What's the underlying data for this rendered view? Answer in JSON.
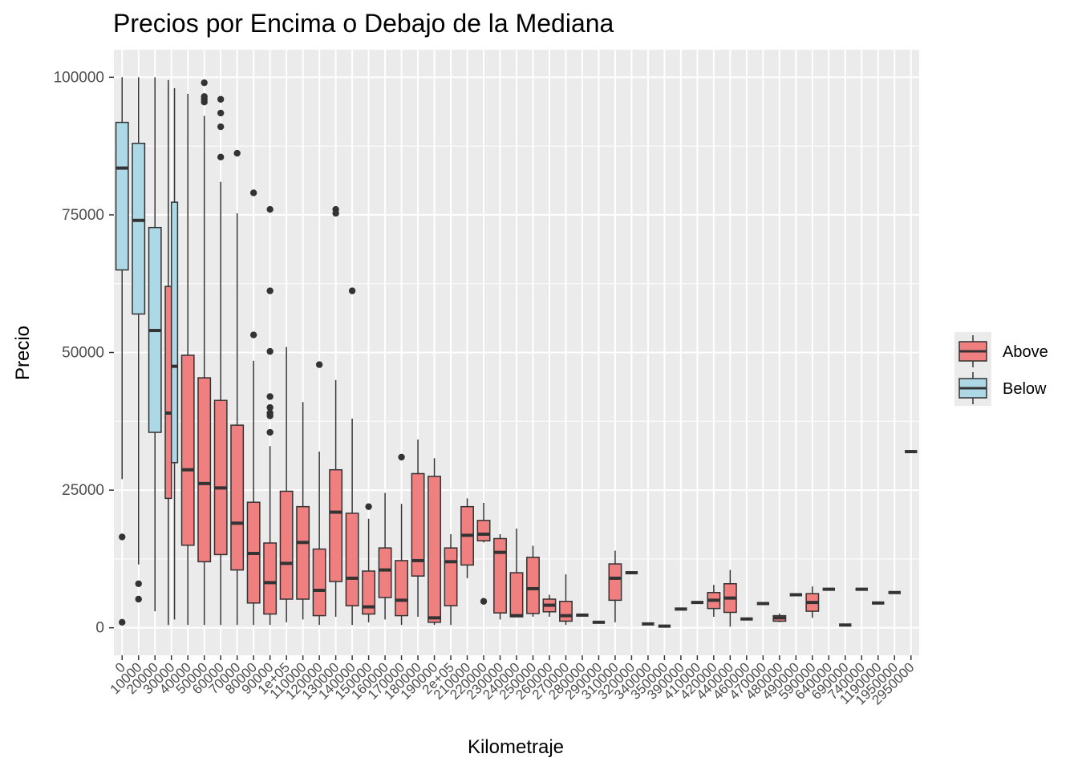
{
  "chart_data": {
    "type": "boxplot",
    "title": "Precios por Encima o Debajo de la Mediana",
    "xlabel": "Kilometraje",
    "ylabel": "Precio",
    "ylim": [
      -5000,
      105000
    ],
    "yticks": [
      0,
      25000,
      50000,
      75000,
      100000
    ],
    "grid": true,
    "legend_position": "right",
    "colors": {
      "Above": "#f08080",
      "Below": "#add8e6",
      "panel": "#ebebeb",
      "grid": "#ffffff",
      "line": "#333333"
    },
    "legend": [
      {
        "name": "Above",
        "color": "#f08080"
      },
      {
        "name": "Below",
        "color": "#add8e6"
      }
    ],
    "categories": [
      "0",
      "10000",
      "20000",
      "30000",
      "40000",
      "50000",
      "60000",
      "70000",
      "80000",
      "90000",
      "1e+05",
      "110000",
      "120000",
      "130000",
      "140000",
      "150000",
      "160000",
      "170000",
      "180000",
      "190000",
      "2e+05",
      "210000",
      "220000",
      "230000",
      "240000",
      "250000",
      "260000",
      "270000",
      "280000",
      "290000",
      "310000",
      "320000",
      "340000",
      "350000",
      "390000",
      "410000",
      "420000",
      "440000",
      "460000",
      "470000",
      "480000",
      "490000",
      "590000",
      "640000",
      "690000",
      "740000",
      "1190000",
      "1950000",
      "2950000"
    ],
    "boxes": [
      {
        "cat": 0,
        "group": "Below",
        "min": 27000,
        "q1": 65000,
        "median": 83500,
        "q3": 91800,
        "max": 100000,
        "outliers": [
          16500,
          1000
        ]
      },
      {
        "cat": 1,
        "group": "Below",
        "min": 11500,
        "q1": 57000,
        "median": 74000,
        "q3": 88000,
        "max": 100000,
        "outliers": [
          8000,
          5200
        ]
      },
      {
        "cat": 2,
        "group": "Below",
        "min": 3000,
        "q1": 35500,
        "median": 54000,
        "q3": 72700,
        "max": 100000,
        "outliers": []
      },
      {
        "cat": 3,
        "group": "Above",
        "min": 500,
        "q1": 23500,
        "median": 39000,
        "q3": 62000,
        "max": 99500,
        "outliers": []
      },
      {
        "cat": 3,
        "group": "Below",
        "min": 1500,
        "q1": 30000,
        "median": 47500,
        "q3": 77300,
        "max": 98000,
        "outliers": []
      },
      {
        "cat": 4,
        "group": "Above",
        "min": 500,
        "q1": 15000,
        "median": 28700,
        "q3": 49500,
        "max": 97000,
        "outliers": []
      },
      {
        "cat": 5,
        "group": "Above",
        "min": 500,
        "q1": 12000,
        "median": 26200,
        "q3": 45400,
        "max": 93000,
        "outliers": [
          99000,
          96500,
          96000,
          95500
        ]
      },
      {
        "cat": 6,
        "group": "Above",
        "min": 500,
        "q1": 13300,
        "median": 25400,
        "q3": 41300,
        "max": 81000,
        "outliers": [
          96000,
          93500,
          91000,
          85500
        ]
      },
      {
        "cat": 7,
        "group": "Above",
        "min": 500,
        "q1": 10500,
        "median": 19000,
        "q3": 36800,
        "max": 75300,
        "outliers": [
          86200
        ]
      },
      {
        "cat": 8,
        "group": "Above",
        "min": 500,
        "q1": 4500,
        "median": 13500,
        "q3": 22800,
        "max": 48500,
        "outliers": [
          79000,
          53200
        ]
      },
      {
        "cat": 9,
        "group": "Above",
        "min": 500,
        "q1": 2500,
        "median": 8200,
        "q3": 15400,
        "max": 33000,
        "outliers": [
          76000,
          61200,
          50200,
          42000,
          40000,
          39000,
          38500,
          35500
        ]
      },
      {
        "cat": 10,
        "group": "Above",
        "min": 1000,
        "q1": 5200,
        "median": 11700,
        "q3": 24800,
        "max": 51000,
        "outliers": []
      },
      {
        "cat": 11,
        "group": "Above",
        "min": 1500,
        "q1": 5200,
        "median": 15500,
        "q3": 22000,
        "max": 41000,
        "outliers": []
      },
      {
        "cat": 12,
        "group": "Above",
        "min": 500,
        "q1": 2200,
        "median": 6800,
        "q3": 14300,
        "max": 32000,
        "outliers": [
          47800
        ]
      },
      {
        "cat": 13,
        "group": "Above",
        "min": 2000,
        "q1": 8400,
        "median": 21000,
        "q3": 28700,
        "max": 45000,
        "outliers": [
          76000,
          75300
        ]
      },
      {
        "cat": 14,
        "group": "Above",
        "min": 500,
        "q1": 4000,
        "median": 9000,
        "q3": 20800,
        "max": 38000,
        "outliers": [
          61200
        ]
      },
      {
        "cat": 15,
        "group": "Above",
        "min": 1000,
        "q1": 2500,
        "median": 3800,
        "q3": 10300,
        "max": 19800,
        "outliers": [
          22000
        ]
      },
      {
        "cat": 16,
        "group": "Above",
        "min": 1500,
        "q1": 5500,
        "median": 10500,
        "q3": 14500,
        "max": 24500,
        "outliers": []
      },
      {
        "cat": 17,
        "group": "Above",
        "min": 500,
        "q1": 2200,
        "median": 5000,
        "q3": 12200,
        "max": 22500,
        "outliers": [
          31000
        ]
      },
      {
        "cat": 18,
        "group": "Above",
        "min": 2000,
        "q1": 9400,
        "median": 12200,
        "q3": 28000,
        "max": 34200,
        "outliers": []
      },
      {
        "cat": 19,
        "group": "Above",
        "min": 500,
        "q1": 1000,
        "median": 1800,
        "q3": 27500,
        "max": 30800,
        "outliers": []
      },
      {
        "cat": 20,
        "group": "Above",
        "min": 500,
        "q1": 4000,
        "median": 12000,
        "q3": 14500,
        "max": 17000,
        "outliers": []
      },
      {
        "cat": 21,
        "group": "Above",
        "min": 9000,
        "q1": 11400,
        "median": 16800,
        "q3": 22000,
        "max": 23500,
        "outliers": []
      },
      {
        "cat": 22,
        "group": "Above",
        "min": 15500,
        "q1": 15800,
        "median": 17000,
        "q3": 19500,
        "max": 22700,
        "outliers": [
          4800
        ]
      },
      {
        "cat": 23,
        "group": "Above",
        "min": 1500,
        "q1": 2700,
        "median": 13700,
        "q3": 16200,
        "max": 17000,
        "outliers": []
      },
      {
        "cat": 24,
        "group": "Above",
        "min": 2000,
        "q1": 2000,
        "median": 2200,
        "q3": 10000,
        "max": 18000,
        "outliers": []
      },
      {
        "cat": 25,
        "group": "Above",
        "min": 2000,
        "q1": 2600,
        "median": 7100,
        "q3": 12800,
        "max": 14900,
        "outliers": []
      },
      {
        "cat": 26,
        "group": "Above",
        "min": 2000,
        "q1": 2900,
        "median": 4100,
        "q3": 5200,
        "max": 6000,
        "outliers": []
      },
      {
        "cat": 27,
        "group": "Above",
        "min": 500,
        "q1": 1200,
        "median": 2200,
        "q3": 4800,
        "max": 9700,
        "outliers": []
      },
      {
        "cat": 28,
        "group": "Above",
        "min": 2300,
        "q1": 2300,
        "median": 2300,
        "q3": 2300,
        "max": 2300,
        "outliers": []
      },
      {
        "cat": 29,
        "group": "Above",
        "min": 1000,
        "q1": 1000,
        "median": 1000,
        "q3": 1000,
        "max": 1000,
        "outliers": []
      },
      {
        "cat": 30,
        "group": "Above",
        "min": 1000,
        "q1": 5000,
        "median": 9000,
        "q3": 11600,
        "max": 14000,
        "outliers": []
      },
      {
        "cat": 31,
        "group": "Above",
        "min": 10000,
        "q1": 10000,
        "median": 10000,
        "q3": 10000,
        "max": 10000,
        "outliers": []
      },
      {
        "cat": 32,
        "group": "Above",
        "min": 700,
        "q1": 700,
        "median": 700,
        "q3": 700,
        "max": 700,
        "outliers": []
      },
      {
        "cat": 33,
        "group": "Above",
        "min": 300,
        "q1": 300,
        "median": 300,
        "q3": 300,
        "max": 300,
        "outliers": []
      },
      {
        "cat": 34,
        "group": "Above",
        "min": 3400,
        "q1": 3400,
        "median": 3400,
        "q3": 3400,
        "max": 3400,
        "outliers": []
      },
      {
        "cat": 35,
        "group": "Above",
        "min": 4600,
        "q1": 4600,
        "median": 4600,
        "q3": 4600,
        "max": 4600,
        "outliers": []
      },
      {
        "cat": 36,
        "group": "Above",
        "min": 2000,
        "q1": 3500,
        "median": 5000,
        "q3": 6400,
        "max": 7800,
        "outliers": []
      },
      {
        "cat": 37,
        "group": "Above",
        "min": 200,
        "q1": 2800,
        "median": 5400,
        "q3": 8000,
        "max": 10500,
        "outliers": []
      },
      {
        "cat": 38,
        "group": "Above",
        "min": 1600,
        "q1": 1600,
        "median": 1600,
        "q3": 1600,
        "max": 1600,
        "outliers": []
      },
      {
        "cat": 39,
        "group": "Above",
        "min": 4400,
        "q1": 4400,
        "median": 4400,
        "q3": 4400,
        "max": 4400,
        "outliers": []
      },
      {
        "cat": 40,
        "group": "Above",
        "min": 1000,
        "q1": 1200,
        "median": 1800,
        "q3": 2200,
        "max": 2600,
        "outliers": []
      },
      {
        "cat": 41,
        "group": "Above",
        "min": 6000,
        "q1": 6000,
        "median": 6000,
        "q3": 6000,
        "max": 6000,
        "outliers": []
      },
      {
        "cat": 42,
        "group": "Above",
        "min": 1800,
        "q1": 3000,
        "median": 4600,
        "q3": 6200,
        "max": 7500,
        "outliers": []
      },
      {
        "cat": 43,
        "group": "Above",
        "min": 7000,
        "q1": 7000,
        "median": 7000,
        "q3": 7000,
        "max": 7000,
        "outliers": []
      },
      {
        "cat": 44,
        "group": "Above",
        "min": 500,
        "q1": 500,
        "median": 500,
        "q3": 500,
        "max": 500,
        "outliers": []
      },
      {
        "cat": 45,
        "group": "Above",
        "min": 7000,
        "q1": 7000,
        "median": 7000,
        "q3": 7000,
        "max": 7000,
        "outliers": []
      },
      {
        "cat": 46,
        "group": "Above",
        "min": 4500,
        "q1": 4500,
        "median": 4500,
        "q3": 4500,
        "max": 4500,
        "outliers": []
      },
      {
        "cat": 47,
        "group": "Above",
        "min": 6400,
        "q1": 6400,
        "median": 6400,
        "q3": 6400,
        "max": 6400,
        "outliers": []
      },
      {
        "cat": 48,
        "group": "Above",
        "min": 32000,
        "q1": 32000,
        "median": 32000,
        "q3": 32000,
        "max": 32000,
        "outliers": []
      }
    ]
  }
}
